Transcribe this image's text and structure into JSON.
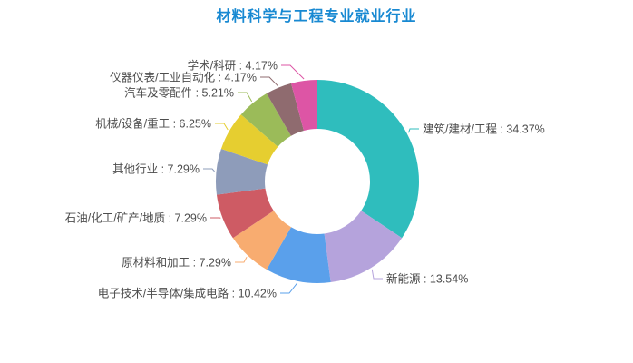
{
  "title": "材料科学与工程专业就业行业",
  "title_color": "#1889d2",
  "label_text_color": "#4d4d4d",
  "background_color": "#ffffff",
  "chart_data": {
    "type": "pie",
    "subtype": "donut",
    "title": "材料科学与工程专业就业行业",
    "legend_position": "none",
    "grid": false,
    "start_angle": "top",
    "direction": "clockwise",
    "label_format": "{name} : {value}%",
    "slices": [
      {
        "name": "建筑/建材/工程",
        "value": 34.37,
        "color": "#2fbdbd"
      },
      {
        "name": "新能源",
        "value": 13.54,
        "color": "#b5a3dc"
      },
      {
        "name": "电子技术/半导体/集成电路",
        "value": 10.42,
        "color": "#5aa0eb"
      },
      {
        "name": "原材料和加工",
        "value": 7.29,
        "color": "#f8ac70"
      },
      {
        "name": "石油/化工/矿产/地质",
        "value": 7.29,
        "color": "#ce5b64"
      },
      {
        "name": "其他行业",
        "value": 7.29,
        "color": "#8e9cba"
      },
      {
        "name": "机械/设备/重工",
        "value": 6.25,
        "color": "#e6ce30"
      },
      {
        "name": "汽车及零配件",
        "value": 5.21,
        "color": "#9bbb59"
      },
      {
        "name": "仪器仪表/工业自动化",
        "value": 4.17,
        "color": "#8f6b6f"
      },
      {
        "name": "学术/科研",
        "value": 4.17,
        "color": "#dd55a5"
      }
    ]
  }
}
